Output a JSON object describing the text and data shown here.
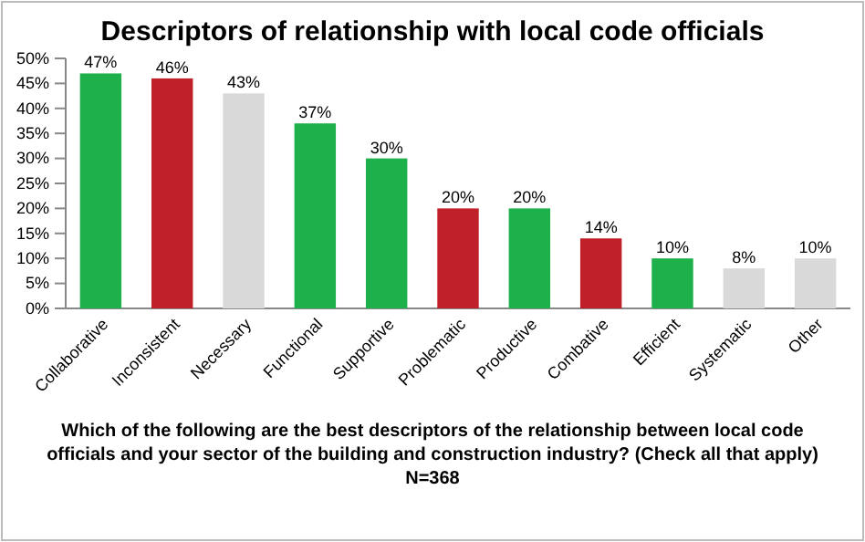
{
  "chart_data": {
    "type": "bar",
    "title": "Descriptors of relationship with local code officials",
    "categories": [
      "Collaborative",
      "Inconsistent",
      "Necessary",
      "Functional",
      "Supportive",
      "Problematic",
      "Productive",
      "Combative",
      "Efficient",
      "Systematic",
      "Other"
    ],
    "values": [
      47,
      46,
      43,
      37,
      30,
      20,
      20,
      14,
      10,
      8,
      10
    ],
    "colors": [
      "#1db04b",
      "#c0202a",
      "#d9d9d9",
      "#1db04b",
      "#1db04b",
      "#c0202a",
      "#1db04b",
      "#c0202a",
      "#1db04b",
      "#d9d9d9",
      "#d9d9d9"
    ],
    "value_labels": [
      "47%",
      "46%",
      "43%",
      "37%",
      "30%",
      "20%",
      "20%",
      "14%",
      "10%",
      "8%",
      "10%"
    ],
    "ylim": [
      0,
      50
    ],
    "yticks": [
      {
        "value": 0,
        "label": "0%"
      },
      {
        "value": 5,
        "label": "5%"
      },
      {
        "value": 10,
        "label": "10%"
      },
      {
        "value": 15,
        "label": "15%"
      },
      {
        "value": 20,
        "label": "20%"
      },
      {
        "value": 25,
        "label": "25%"
      },
      {
        "value": 30,
        "label": "30%"
      },
      {
        "value": 35,
        "label": "35%"
      },
      {
        "value": 40,
        "label": "40%"
      },
      {
        "value": 45,
        "label": "45%"
      },
      {
        "value": 50,
        "label": "50%"
      }
    ],
    "annotations": [
      "Which of the following are the best descriptors of the relationship between local code officials and your sector of the building and construction industry? (Check all that apply)",
      "N=368"
    ]
  }
}
